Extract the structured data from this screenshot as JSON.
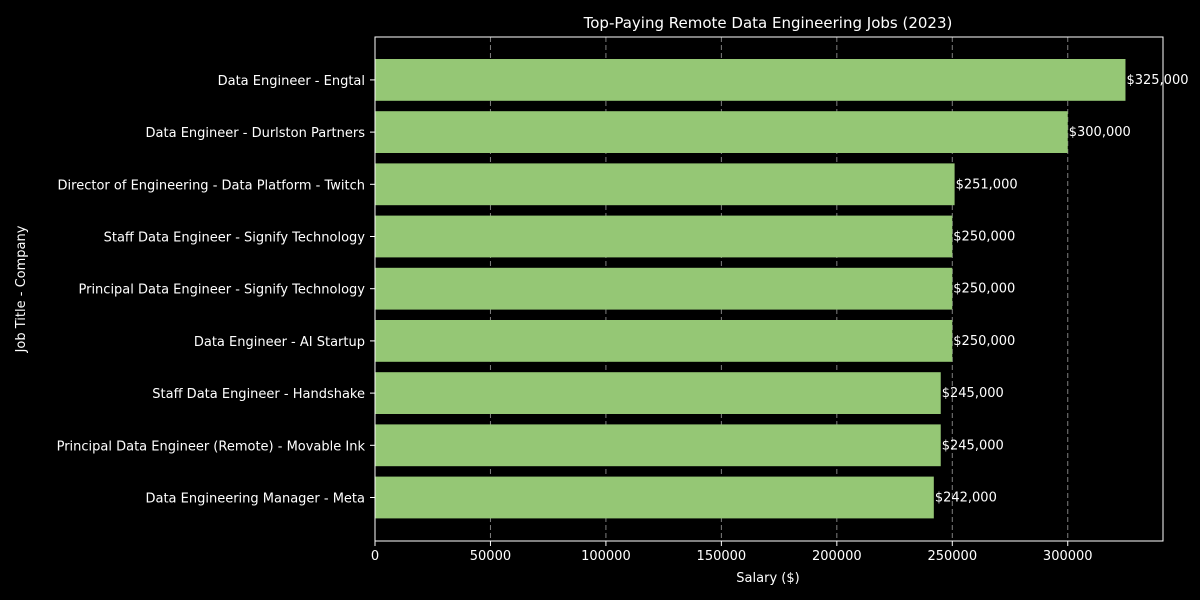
{
  "chart_data": {
    "type": "bar",
    "orientation": "horizontal",
    "title": "Top-Paying Remote Data Engineering Jobs (2023)",
    "xlabel": "Salary ($)",
    "ylabel": "Job Title - Company",
    "xlim": [
      0,
      341250
    ],
    "xticks": [
      0,
      50000,
      100000,
      150000,
      200000,
      250000,
      300000
    ],
    "grid": "x-dashed",
    "categories": [
      "Data Engineer - Engtal",
      "Data Engineer - Durlston Partners",
      "Director of Engineering - Data Platform - Twitch",
      "Staff Data Engineer - Signify Technology",
      "Principal Data Engineer - Signify Technology",
      "Data Engineer - AI Startup",
      "Staff Data Engineer - Handshake",
      "Principal Data Engineer (Remote) - Movable Ink",
      "Data Engineering Manager - Meta"
    ],
    "values": [
      325000,
      300000,
      251000,
      250000,
      250000,
      250000,
      245000,
      245000,
      242000
    ],
    "value_labels": [
      "$325,000",
      "$300,000",
      "$251,000",
      "$250,000",
      "$250,000",
      "$250,000",
      "$245,000",
      "$245,000",
      "$242,000"
    ],
    "colors": {
      "background": "#000000",
      "bar": "#95c775",
      "text": "#ffffff",
      "grid": "#7f7f7f",
      "axis": "#ffffff"
    }
  }
}
